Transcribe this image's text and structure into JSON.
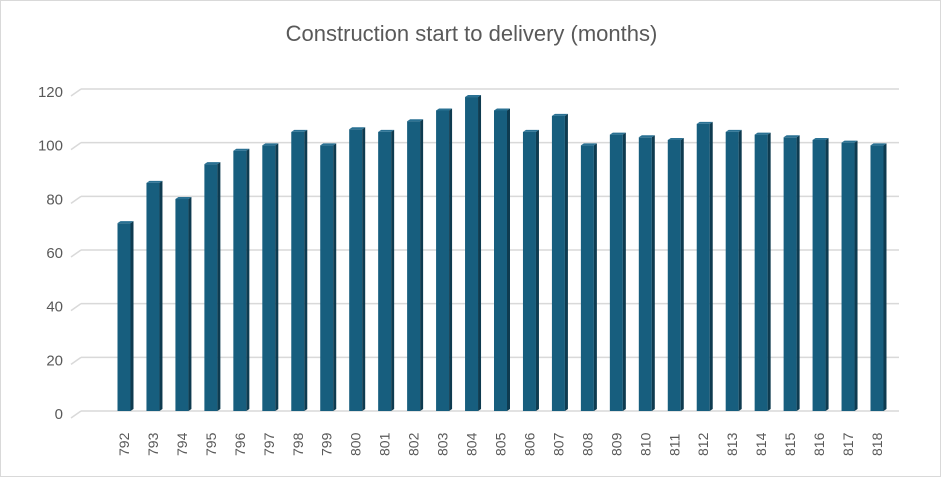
{
  "chart_data": {
    "type": "bar",
    "title": "Construction start to delivery (months)",
    "xlabel": "",
    "ylabel": "",
    "ylim": [
      0,
      120
    ],
    "yticks": [
      0,
      20,
      40,
      60,
      80,
      100,
      120
    ],
    "grid": true,
    "legend": "none",
    "bar_color": "#175e7e",
    "categories": [
      "792",
      "793",
      "794",
      "795",
      "796",
      "797",
      "798",
      "799",
      "800",
      "801",
      "802",
      "803",
      "804",
      "805",
      "806",
      "807",
      "808",
      "809",
      "810",
      "811",
      "812",
      "813",
      "814",
      "815",
      "816",
      "817",
      "818"
    ],
    "values": [
      70,
      85,
      79,
      92,
      97,
      99,
      104,
      99,
      105,
      104,
      108,
      112,
      117,
      112,
      104,
      110,
      99,
      103,
      102,
      101,
      107,
      104,
      103,
      102,
      101,
      100,
      99
    ]
  }
}
